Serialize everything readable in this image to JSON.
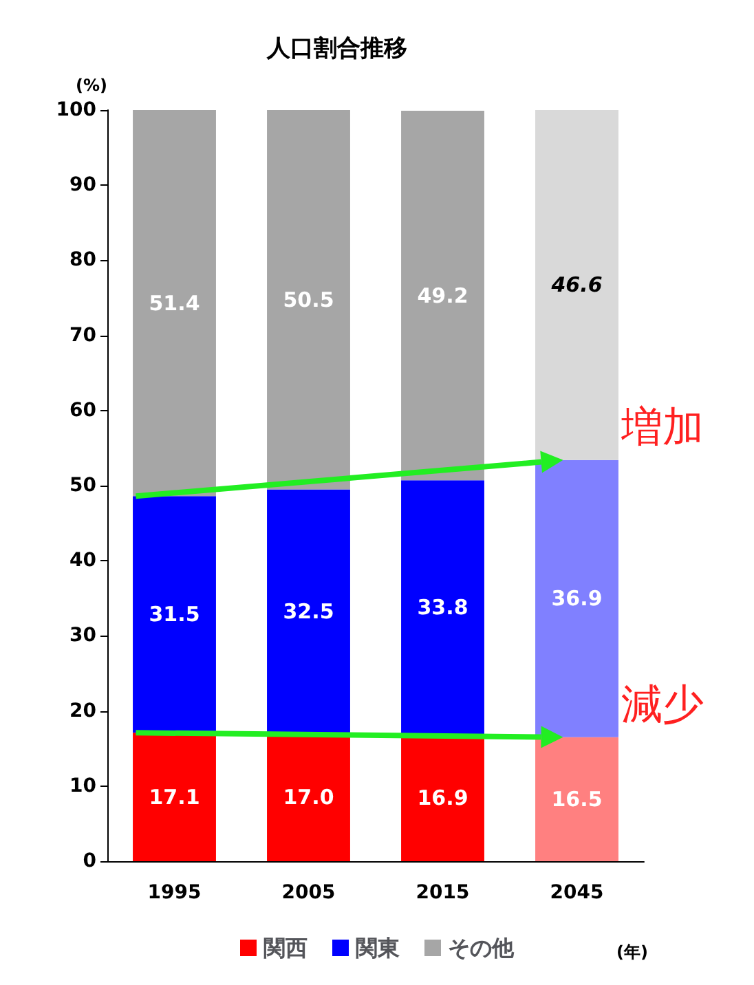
{
  "chart_data": {
    "type": "bar",
    "title": "人口割合推移",
    "ylabel": "(%)",
    "xlabel": "(年)",
    "stacked": true,
    "data_labels": true,
    "legend": "bottom",
    "grid": false,
    "categories": [
      "1995",
      "2005",
      "2015",
      "2045"
    ],
    "series": [
      {
        "name": "関西",
        "color": "#ff0000",
        "colors": [
          "#ff0000",
          "#ff0000",
          "#ff0000",
          "#ff8080"
        ],
        "values": [
          17.1,
          17.0,
          16.9,
          16.5
        ],
        "value_labels": [
          "17.1",
          "17.0",
          "16.9",
          "16.5"
        ]
      },
      {
        "name": "関東",
        "color": "#0000ff",
        "colors": [
          "#0000ff",
          "#0000ff",
          "#0000ff",
          "#8080ff"
        ],
        "values": [
          31.5,
          32.5,
          33.8,
          36.9
        ]
      },
      {
        "name": "その他",
        "color": "#a6a6a6",
        "colors": [
          "#a6a6a6",
          "#a6a6a6",
          "#a6a6a6",
          "#d9d9d9"
        ],
        "values": [
          51.4,
          50.5,
          49.2,
          46.6
        ]
      }
    ],
    "ylim": [
      0,
      100
    ],
    "yticks": [
      0,
      10,
      20,
      30,
      40,
      50,
      60,
      70,
      80,
      90,
      100
    ],
    "annotations": [
      "増加",
      "減少"
    ]
  }
}
